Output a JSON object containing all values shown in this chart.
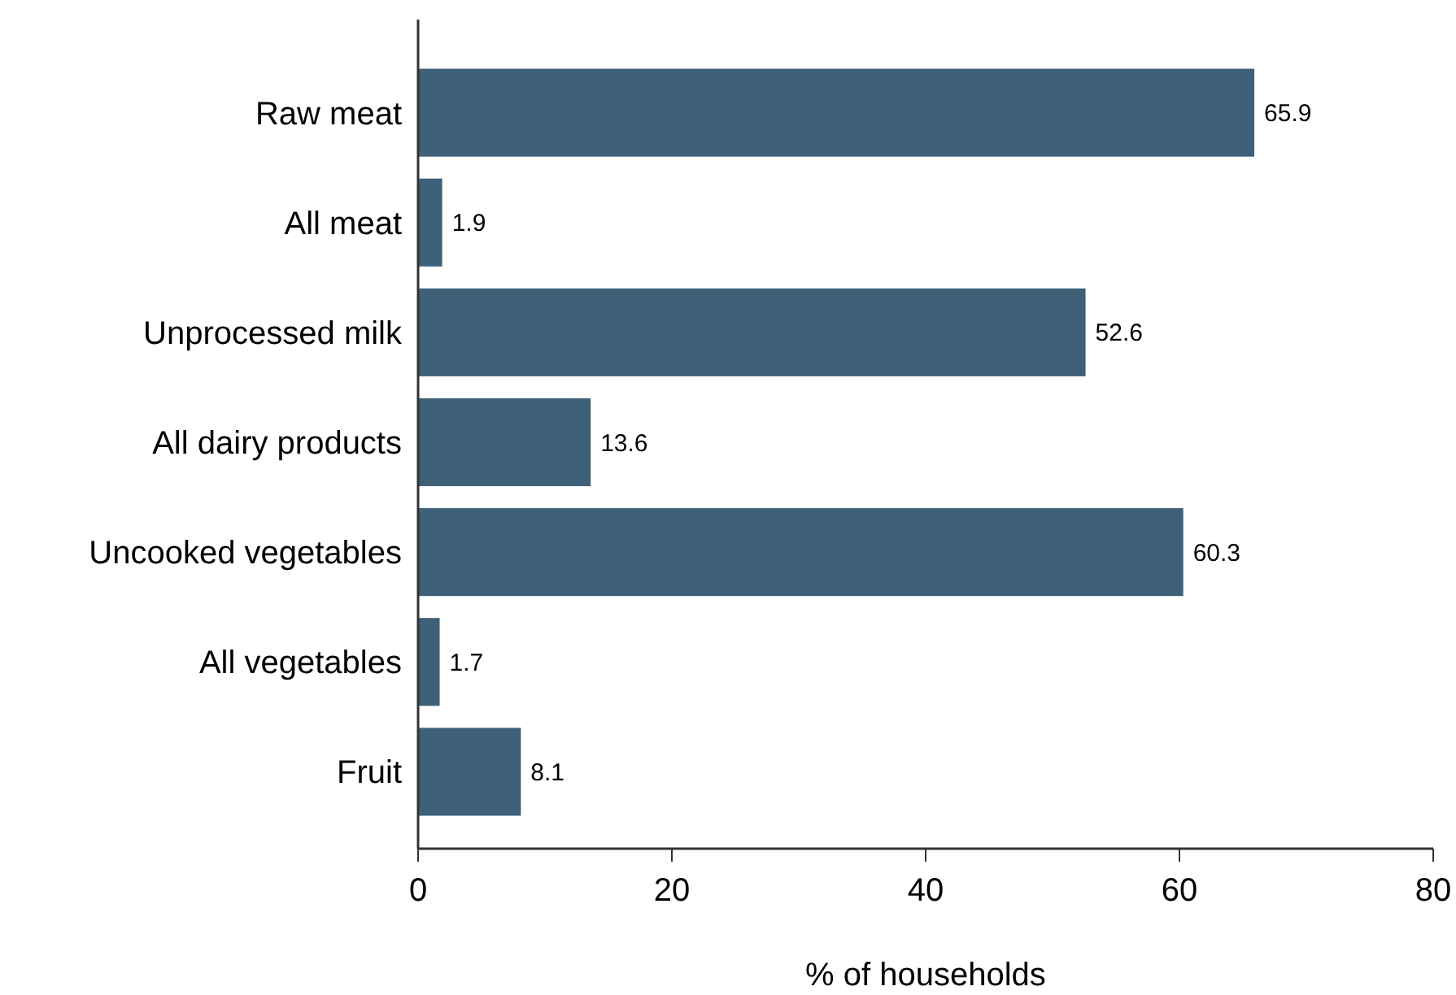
{
  "chart_data": {
    "type": "bar",
    "orientation": "horizontal",
    "xlabel": "% of households",
    "categories": [
      "Raw meat",
      "All meat",
      "Unprocessed milk",
      "All dairy products",
      "Uncooked vegetables",
      "All vegetables",
      "Fruit"
    ],
    "values": [
      65.9,
      1.9,
      52.6,
      13.6,
      60.3,
      1.7,
      8.1
    ],
    "color": "#3e6079",
    "xlim": [
      0,
      80
    ],
    "xticks": [
      0,
      20,
      40,
      60,
      80
    ],
    "data_labels": true,
    "grid": false
  }
}
